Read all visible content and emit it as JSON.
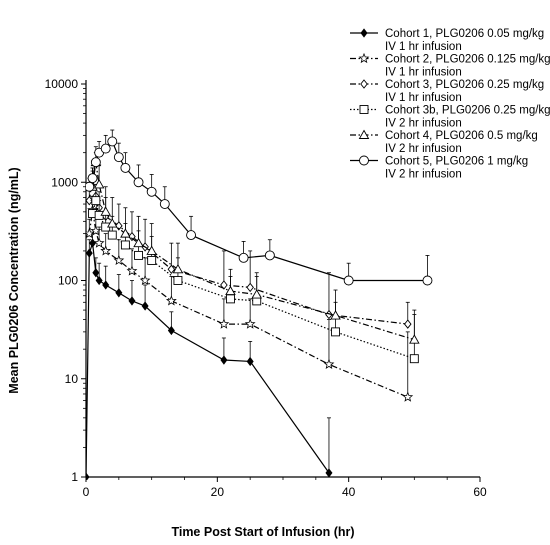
{
  "chart_data": {
    "type": "line",
    "title": "",
    "xlabel": "Time Post Start of Infusion (hr)",
    "ylabel": "Mean PLG0206 Concentration (ng/mL)",
    "xlim": [
      0,
      60
    ],
    "ylim": [
      1,
      10000
    ],
    "yscale": "log",
    "x_ticks": [
      "0",
      "20",
      "40",
      "60"
    ],
    "y_ticks": [
      "1",
      "10",
      "100",
      "1000",
      "10000"
    ],
    "grid": false,
    "legend_position": "top-right",
    "series": [
      {
        "name": "Cohort 1, PLG0206 0.05 mg/kg",
        "name_line2": "IV 1 hr infusion",
        "marker": "diamond-filled",
        "dash": "solid",
        "x": [
          0,
          0.5,
          1,
          1.5,
          2,
          3,
          5,
          7,
          9,
          13,
          21,
          25,
          37
        ],
        "y": [
          1,
          190,
          240,
          120,
          100,
          90,
          75,
          62,
          55,
          31,
          15.5,
          15,
          1.1
        ],
        "err_upper": [
          1,
          260,
          310,
          170,
          150,
          140,
          115,
          100,
          90,
          48,
          26,
          24,
          4
        ]
      },
      {
        "name": "Cohort 2, PLG0206 0.125 mg/kg",
        "name_line2": "IV 1 hr infusion",
        "marker": "star",
        "dash": "dashdot",
        "x": [
          0.5,
          1,
          1.5,
          2,
          3,
          5,
          7,
          9,
          13,
          21,
          25,
          37,
          49
        ],
        "y": [
          300,
          520,
          320,
          240,
          200,
          160,
          125,
          100,
          62,
          36,
          36,
          14,
          6.5
        ],
        "err_upper": [
          420,
          720,
          460,
          350,
          300,
          260,
          210,
          170,
          110,
          65,
          65,
          40,
          30
        ]
      },
      {
        "name": "Cohort 3, PLG0206 0.25 mg/kg",
        "name_line2": "IV 1 hr infusion",
        "marker": "diamond-open",
        "dash": "dashdot",
        "x": [
          0.5,
          1,
          1.5,
          2,
          3,
          5,
          7,
          9,
          13,
          21,
          25,
          37,
          49
        ],
        "y": [
          650,
          1100,
          720,
          550,
          450,
          360,
          280,
          220,
          130,
          90,
          85,
          45,
          36
        ],
        "err_upper": [
          850,
          1400,
          950,
          800,
          700,
          600,
          500,
          420,
          240,
          200,
          200,
          120,
          60
        ]
      },
      {
        "name": "Cohort 3b, PLG0206 0.25 mg/kg",
        "name_line2": "IV 2 hr infusion",
        "marker": "square",
        "dash": "dotted",
        "x": [
          1,
          1.5,
          2,
          3,
          4,
          6,
          8,
          10,
          14,
          22,
          26,
          38,
          50
        ],
        "y": [
          480,
          650,
          460,
          350,
          290,
          230,
          180,
          160,
          100,
          65,
          62,
          30,
          16
        ],
        "err_upper": [
          650,
          900,
          650,
          500,
          450,
          380,
          320,
          280,
          170,
          110,
          110,
          60,
          50
        ]
      },
      {
        "name": "Cohort 4, PLG0206 0.5 mg/kg",
        "name_line2": "IV 2 hr infusion",
        "marker": "triangle",
        "dash": "dashdot",
        "x": [
          1,
          1.5,
          2,
          3,
          4,
          6,
          8,
          10,
          14,
          22,
          26,
          38,
          50
        ],
        "y": [
          900,
          1600,
          950,
          500,
          380,
          300,
          240,
          200,
          130,
          78,
          72,
          44,
          25
        ],
        "err_upper": [
          1300,
          2300,
          1500,
          900,
          700,
          550,
          450,
          380,
          240,
          130,
          120,
          80,
          45
        ]
      },
      {
        "name": "Cohort 5, PLG0206 1 mg/kg",
        "name_line2": "IV 2 hr infusion",
        "marker": "circle",
        "dash": "solid",
        "x": [
          0.5,
          1,
          1.5,
          2,
          3,
          4,
          5,
          6,
          8,
          10,
          12,
          16,
          24,
          28,
          40,
          52
        ],
        "y": [
          900,
          1100,
          1600,
          2000,
          2200,
          2600,
          1800,
          1400,
          1000,
          800,
          600,
          290,
          170,
          180,
          100,
          100
        ],
        "err_upper": [
          1100,
          1400,
          2000,
          2600,
          3000,
          3400,
          2500,
          2000,
          1500,
          1200,
          900,
          450,
          250,
          260,
          150,
          180
        ]
      }
    ]
  }
}
